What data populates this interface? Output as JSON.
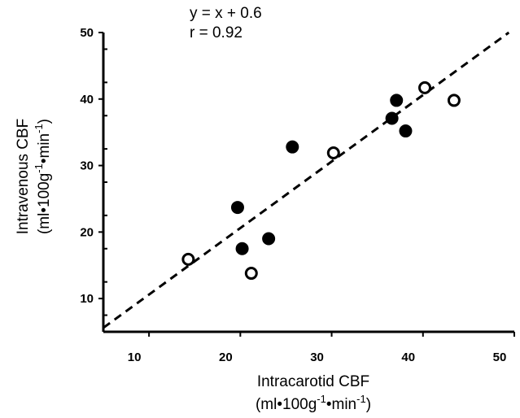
{
  "chart_data": {
    "type": "scatter",
    "title": "",
    "xlabel": "Intracarotid CBF",
    "xunit_prefix": "(ml•100g",
    "xunit_exp1": "-1",
    "xunit_mid": "•min",
    "xunit_exp2": "-1",
    "xunit_suffix": ")",
    "ylabel": "Intravenous CBF",
    "yunit_prefix": "(ml•100g",
    "yunit_exp1": "-1",
    "yunit_mid": "•min",
    "yunit_exp2": "-1",
    "yunit_suffix": ")",
    "xlim": [
      5,
      50
    ],
    "ylim": [
      5,
      50
    ],
    "xticks": [
      10,
      20,
      30,
      40,
      50
    ],
    "yticks": [
      10,
      20,
      30,
      40,
      50
    ],
    "xtick_labels": [
      "10",
      "20",
      "30",
      "40",
      "50"
    ],
    "ytick_labels": [
      "10",
      "20",
      "30",
      "40",
      "50"
    ],
    "grid": false,
    "annotations": [
      "y = x + 0.6",
      "r = 0.92"
    ],
    "fit_line": {
      "slope": 1,
      "intercept": 0.6
    },
    "series": [
      {
        "marker": "filled-circle",
        "points": [
          [
            19.7,
            23.7
          ],
          [
            20.2,
            17.5
          ],
          [
            23.1,
            19.0
          ],
          [
            25.7,
            32.8
          ],
          [
            36.6,
            37.1
          ],
          [
            37.1,
            39.8
          ],
          [
            38.1,
            35.2
          ]
        ]
      },
      {
        "marker": "open-circle",
        "points": [
          [
            14.3,
            15.9
          ],
          [
            21.2,
            13.8
          ],
          [
            30.2,
            31.9
          ],
          [
            40.2,
            41.7
          ],
          [
            43.4,
            39.8
          ]
        ]
      }
    ]
  }
}
